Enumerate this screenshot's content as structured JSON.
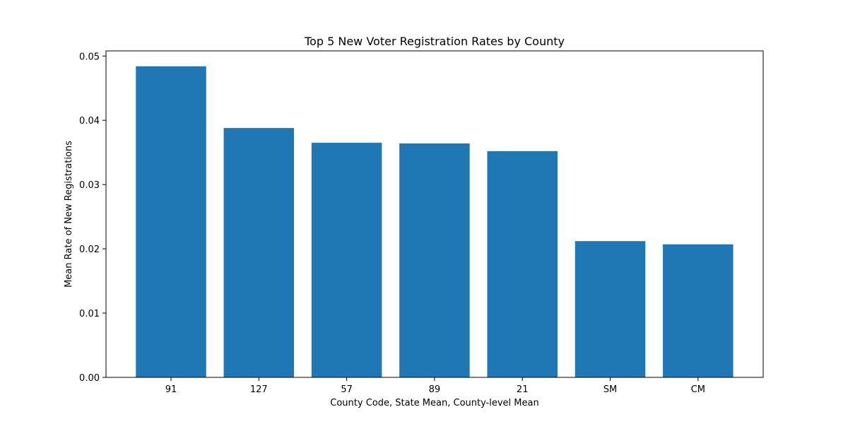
{
  "chart_data": {
    "type": "bar",
    "title": "Top 5 New Voter Registration Rates by County",
    "xlabel": "County Code, State Mean, County-level Mean",
    "ylabel": "Mean Rate of New Registrations",
    "categories": [
      "91",
      "127",
      "57",
      "89",
      "21",
      "SM",
      "CM"
    ],
    "values": [
      0.0484,
      0.0388,
      0.0365,
      0.0364,
      0.0352,
      0.0212,
      0.0207
    ],
    "ylim": [
      0,
      0.0508
    ],
    "yticks": [
      "0.00",
      "0.01",
      "0.02",
      "0.03",
      "0.04",
      "0.05"
    ],
    "ytick_values": [
      0,
      0.01,
      0.02,
      0.03,
      0.04,
      0.05
    ],
    "bar_color": "#1f77b4",
    "grid": false
  }
}
